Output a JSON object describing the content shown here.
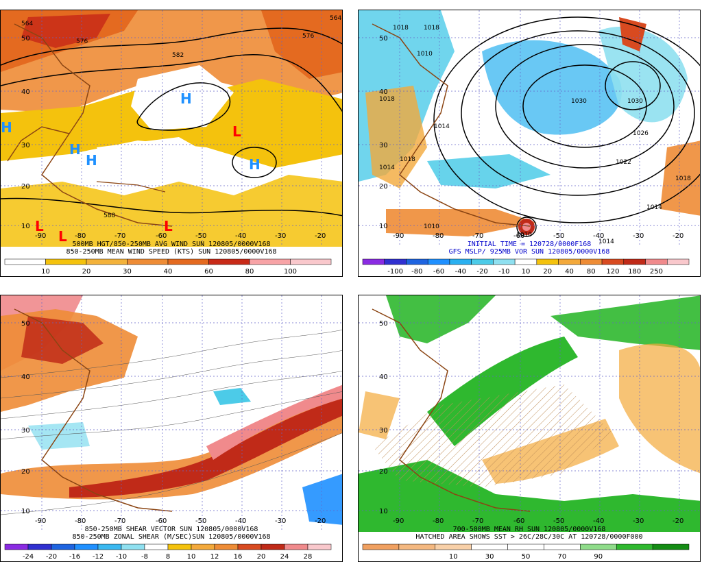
{
  "panels": [
    {
      "id": "p1",
      "captions": [
        "500MB HGT/850-250MB AVG WIND SUN 120805/0000V168",
        "850-250MB MEAN WIND SPEED (KTS) SUN 120805/0000V168"
      ],
      "caption_color": "#000000",
      "lat_labels": [
        "50",
        "40",
        "30",
        "20",
        "10"
      ],
      "lon_labels": [
        "-90",
        "-80",
        "-70",
        "-60",
        "-50",
        "-40",
        "-30",
        "-20"
      ],
      "contour_labels": [
        "564",
        "576",
        "582",
        "588",
        "576",
        "564"
      ],
      "symbols": [
        {
          "t": "H",
          "c": "#1e90ff"
        },
        {
          "t": "H",
          "c": "#1e90ff"
        },
        {
          "t": "H",
          "c": "#1e90ff"
        },
        {
          "t": "H",
          "c": "#1e90ff"
        },
        {
          "t": "H",
          "c": "#1e90ff"
        },
        {
          "t": "L",
          "c": "#ff0000"
        },
        {
          "t": "L",
          "c": "#ff0000"
        },
        {
          "t": "L",
          "c": "#ff0000"
        },
        {
          "t": "L",
          "c": "#ff0000"
        }
      ],
      "colorbar": {
        "colors": [
          "#ffffff",
          "#f4c20d",
          "#f3b23b",
          "#ee8c36",
          "#e46a20",
          "#c82a18",
          "#f7a3a6",
          "#f9c8cc"
        ],
        "labels": [
          "10",
          "20",
          "30",
          "40",
          "60",
          "80",
          "100"
        ]
      }
    },
    {
      "id": "p2",
      "captions": [
        "INITIAL TIME = 120728/0000F168",
        "GFS MSLP/ 925MB VOR SUN 120805/0000V168"
      ],
      "caption_color": "#0000cc",
      "lat_labels": [
        "50",
        "40",
        "30",
        "20",
        "10"
      ],
      "lon_labels": [
        "-90",
        "-80",
        "-70",
        "-60",
        "-50",
        "-40",
        "-30",
        "-20"
      ],
      "contour_labels": [
        "1018",
        "1018",
        "1010",
        "1018",
        "1014",
        "1030",
        "1030",
        "1026",
        "1022",
        "1018",
        "1014",
        "1010",
        "1014",
        "1014",
        "1018",
        "1010"
      ],
      "colorbar": {
        "colors": [
          "#8a2be2",
          "#3030d0",
          "#1e64e0",
          "#1f90ff",
          "#2ab0f0",
          "#4ccbe8",
          "#8fe0f0",
          "#ffffff",
          "#f4c20d",
          "#f3a93b",
          "#ee8c36",
          "#d84a20",
          "#c02a18",
          "#f08a8c",
          "#f9c8cc"
        ],
        "labels": [
          "-100",
          "-80",
          "-60",
          "-40",
          "-20",
          "-10",
          "10",
          "20",
          "40",
          "80",
          "120",
          "180",
          "250"
        ]
      }
    },
    {
      "id": "p3",
      "captions": [
        "850-250MB SHEAR VECTOR SUN 120805/0000V168",
        "850-250MB ZONAL SHEAR (M/SEC)SUN 120805/0000V168"
      ],
      "caption_color": "#000000",
      "lat_labels": [
        "50",
        "40",
        "30",
        "20",
        "10"
      ],
      "lon_labels": [
        "-90",
        "-80",
        "-70",
        "-60",
        "-50",
        "-40",
        "-30",
        "-20"
      ],
      "colorbar": {
        "colors": [
          "#8a2be2",
          "#3030d0",
          "#1e64e0",
          "#1f90ff",
          "#3ab8f0",
          "#8fe0f0",
          "#ffffff",
          "#f4c20d",
          "#f3a93b",
          "#ee8c36",
          "#d84a20",
          "#c02a18",
          "#f08a8c",
          "#f9c8cc"
        ],
        "labels": [
          "-24",
          "-20",
          "-16",
          "-12",
          "-10",
          "-8",
          "8",
          "10",
          "12",
          "16",
          "20",
          "24",
          "28"
        ]
      }
    },
    {
      "id": "p4",
      "captions": [
        "700-500MB MEAN RH SUN 120805/0000V168",
        "HATCHED AREA SHOWS SST > 26C/28C/30C AT 120728/0000F000"
      ],
      "caption_color": "#000000",
      "lat_labels": [
        "50",
        "40",
        "30",
        "20",
        "10"
      ],
      "lon_labels": [
        "-90",
        "-80",
        "-70",
        "-60",
        "-50",
        "-40",
        "-30",
        "-20"
      ],
      "colorbar": {
        "colors": [
          "#f0a060",
          "#f4b880",
          "#f8d0a8",
          "#ffffff",
          "#ffffff",
          "#ffffff",
          "#8fdc8a",
          "#2fb82f",
          "#148c14"
        ],
        "labels": [
          "10",
          "30",
          "50",
          "70",
          "90"
        ]
      }
    }
  ]
}
